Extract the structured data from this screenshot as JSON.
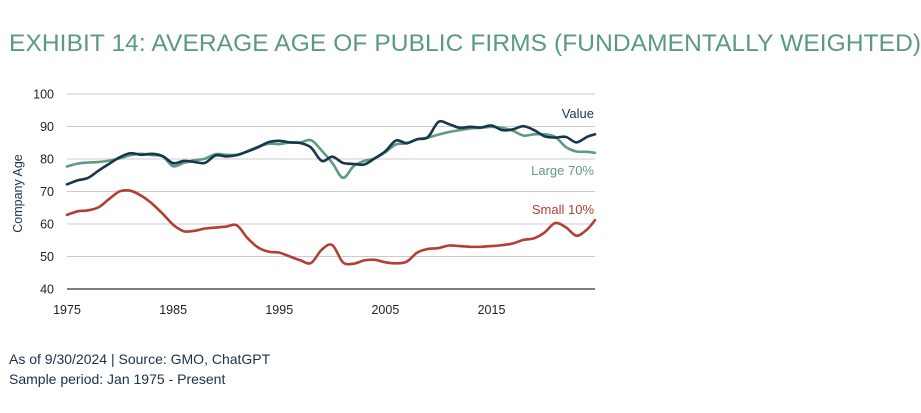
{
  "title": "EXHIBIT 14: AVERAGE AGE OF PUBLIC FIRMS (FUNDAMENTALLY WEIGHTED)",
  "footer": {
    "line1": "As of 9/30/2024 | Source: GMO, ChatGPT",
    "line2": "Sample period: Jan 1975 - Present"
  },
  "colors": {
    "title": "#5a9a80",
    "Value": "#17374f",
    "Large 70%": "#5f9b82",
    "Small 10%": "#b23e36",
    "grid": "#cccccc",
    "axis": "#333333"
  },
  "chart_data": {
    "type": "line",
    "xlabel": "",
    "ylabel": "Company Age",
    "xlim": [
      1975,
      2024.75
    ],
    "ylim": [
      40,
      100
    ],
    "xticks": [
      1975,
      1985,
      1995,
      2005,
      2015
    ],
    "yticks": [
      40,
      50,
      60,
      70,
      80,
      90,
      100
    ],
    "grid": "horizontal",
    "legend": "inline labels at right",
    "series": [
      {
        "name": "Value",
        "x": [
          1975,
          1976,
          1977,
          1978,
          1979,
          1980,
          1981,
          1982,
          1983,
          1984,
          1985,
          1986,
          1987,
          1988,
          1989,
          1990,
          1991,
          1992,
          1993,
          1994,
          1995,
          1996,
          1997,
          1998,
          1999,
          2000,
          2001,
          2002,
          2003,
          2004,
          2005,
          2006,
          2007,
          2008,
          2009,
          2010,
          2011,
          2012,
          2013,
          2014,
          2015,
          2016,
          2017,
          2018,
          2019,
          2020,
          2021,
          2022,
          2023,
          2024,
          2024.75
        ],
        "values": [
          72.2,
          73.4,
          74.2,
          76.5,
          78.6,
          80.6,
          81.8,
          81.3,
          81.6,
          80.9,
          78.7,
          79.4,
          79.1,
          78.8,
          81.1,
          80.8,
          81.2,
          82.3,
          83.6,
          85.2,
          85.6,
          85.1,
          84.9,
          83.5,
          79.4,
          80.7,
          78.8,
          78.5,
          78.3,
          80.2,
          82.4,
          85.7,
          84.9,
          86.1,
          86.7,
          91.4,
          90.7,
          89.6,
          89.9,
          89.7,
          90.3,
          88.9,
          89.1,
          90.1,
          88.9,
          87.0,
          86.6,
          86.8,
          85.1,
          86.8,
          87.6
        ]
      },
      {
        "name": "Large 70%",
        "x": [
          1975,
          1976,
          1977,
          1978,
          1979,
          1980,
          1981,
          1982,
          1983,
          1984,
          1985,
          1986,
          1987,
          1988,
          1989,
          1990,
          1991,
          1992,
          1993,
          1994,
          1995,
          1996,
          1997,
          1998,
          1999,
          2000,
          2001,
          2002,
          2003,
          2004,
          2005,
          2006,
          2007,
          2008,
          2009,
          2010,
          2011,
          2012,
          2013,
          2014,
          2015,
          2016,
          2017,
          2018,
          2019,
          2020,
          2021,
          2022,
          2023,
          2024,
          2024.75
        ],
        "values": [
          77.7,
          78.6,
          78.9,
          79.1,
          79.5,
          80.2,
          81.2,
          81.6,
          81.2,
          80.8,
          77.8,
          78.8,
          79.6,
          80.1,
          81.5,
          81.3,
          81.3,
          82.4,
          83.8,
          84.7,
          84.6,
          85.1,
          85.1,
          85.8,
          82.6,
          78.8,
          74.2,
          77.8,
          79.4,
          80.2,
          82.1,
          84.5,
          84.8,
          86.1,
          86.6,
          87.5,
          88.3,
          88.9,
          89.4,
          89.6,
          89.9,
          89.6,
          88.7,
          87.2,
          87.6,
          87.6,
          86.8,
          83.7,
          82.3,
          82.2,
          81.9
        ]
      },
      {
        "name": "Small 10%",
        "x": [
          1975,
          1976,
          1977,
          1978,
          1979,
          1980,
          1981,
          1982,
          1983,
          1984,
          1985,
          1986,
          1987,
          1988,
          1989,
          1990,
          1991,
          1992,
          1993,
          1994,
          1995,
          1996,
          1997,
          1998,
          1999,
          2000,
          2001,
          2002,
          2003,
          2004,
          2005,
          2006,
          2007,
          2008,
          2009,
          2010,
          2011,
          2012,
          2013,
          2014,
          2015,
          2016,
          2017,
          2018,
          2019,
          2020,
          2021,
          2022,
          2023,
          2024,
          2024.75
        ],
        "values": [
          62.8,
          63.9,
          64.2,
          65.2,
          67.8,
          70.1,
          70.2,
          68.7,
          66.3,
          63.2,
          59.8,
          57.8,
          57.9,
          58.6,
          58.9,
          59.2,
          59.6,
          55.7,
          52.8,
          51.5,
          51.2,
          50.0,
          48.8,
          48.0,
          52.1,
          53.5,
          48.2,
          47.8,
          48.8,
          49.0,
          48.2,
          47.9,
          48.4,
          51.2,
          52.3,
          52.6,
          53.4,
          53.2,
          53.0,
          53.0,
          53.2,
          53.5,
          54.0,
          55.1,
          55.6,
          57.4,
          60.3,
          59.0,
          56.4,
          58.3,
          61.2
        ]
      }
    ]
  }
}
